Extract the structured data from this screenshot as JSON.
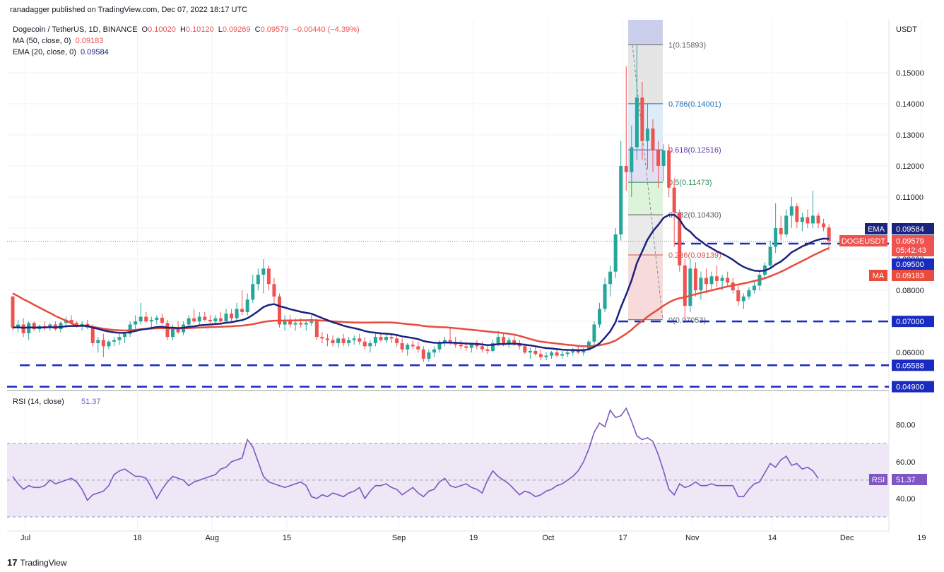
{
  "header": {
    "published": "ranadagger published on TradingView.com, Dec 07, 2022 18:17 UTC",
    "symbol": "Dogecoin / TetherUS, 1D, BINANCE",
    "o_label": "O",
    "o": "0.10020",
    "h_label": "H",
    "h": "0.10120",
    "l_label": "L",
    "l": "0.09269",
    "c_label": "C",
    "c": "0.09579",
    "change": "−0.00440 (−4.39%)",
    "ma_label": "MA (50, close, 0)",
    "ma_value": "0.09183",
    "ema_label": "EMA (20, close, 0)",
    "ema_value": "0.09584"
  },
  "footer": {
    "brand": "TradingView",
    "logo": "17"
  },
  "colors": {
    "up": "#26a69a",
    "down": "#ef5350",
    "ema": "#1a237e",
    "ma": "#e74c3c",
    "support": "#1a2bbf",
    "rsi": "#7e57c2",
    "rsi_band": "#ede7f6"
  },
  "chart_data": [
    {
      "type": "candlestick",
      "title": "Dogecoin / TetherUS, 1D, BINANCE",
      "y_unit": "USDT",
      "ylim": [
        0.048,
        0.167
      ],
      "y_ticks": [
        "0.06000",
        "0.07000",
        "0.08000",
        "0.09000",
        "0.10000",
        "0.11000",
        "0.12000",
        "0.13000",
        "0.14000",
        "0.15000"
      ],
      "x_ticks": [
        "Jul",
        "18",
        "Aug",
        "15",
        "Sep",
        "19",
        "Oct",
        "17",
        "Nov",
        "14",
        "Dec",
        "19"
      ],
      "x_start": "2022-06-27",
      "series": [
        {
          "name": "EMA",
          "color": "#1a237e"
        },
        {
          "name": "MA",
          "color": "#e74c3c"
        }
      ],
      "ohlc": [],
      "levels": [
        {
          "label": "0.07000",
          "value": 0.07
        },
        {
          "label": "0.05588",
          "value": 0.05588
        },
        {
          "label": "0.04900",
          "value": 0.049
        }
      ],
      "fib": [
        {
          "label": "1(0.15893)",
          "value": 0.15893,
          "fill": "#e0e0e0",
          "text_color": "#666666"
        },
        {
          "label": "0.786(0.14001)",
          "value": 0.14001,
          "fill": "#d6e9f8",
          "text_color": "#1f6fb5"
        },
        {
          "label": "0.618(0.12516)",
          "value": 0.12516,
          "fill": "#ddd8f2",
          "text_color": "#5e35b1"
        },
        {
          "label": "0.5(0.11473)",
          "value": 0.11473,
          "fill": "#d7f2d4",
          "text_color": "#2e8b57"
        },
        {
          "label": "0.382(0.10430)",
          "value": 0.1043,
          "fill": "#e6e6e6",
          "text_color": "#555555"
        },
        {
          "label": "0.236(0.09139)",
          "value": 0.09139,
          "fill": "#f6d3d3",
          "text_color": "#d9534f"
        },
        {
          "label": "0(0.07053)",
          "value": 0.07053,
          "fill": null,
          "text_color": "#666666"
        }
      ],
      "labels": {
        "ema": {
          "text": "EMA",
          "value": "0.09584"
        },
        "last": {
          "text": "DOGEUSDT",
          "value": "0.09579",
          "countdown": "05:42:43"
        },
        "level_0950": "0.09500",
        "ma": {
          "text": "MA",
          "value": "0.09183"
        }
      },
      "ohlc_compact": [
        [
          0.078,
          0.0782,
          0.0672,
          0.068
        ],
        [
          0.068,
          0.0705,
          0.0665,
          0.069
        ],
        [
          0.069,
          0.071,
          0.065,
          0.0662
        ],
        [
          0.0662,
          0.07,
          0.064,
          0.0695
        ],
        [
          0.0695,
          0.07,
          0.067,
          0.0675
        ],
        [
          0.0675,
          0.069,
          0.0665,
          0.0685
        ],
        [
          0.0685,
          0.07,
          0.067,
          0.068
        ],
        [
          0.068,
          0.0695,
          0.067,
          0.069
        ],
        [
          0.069,
          0.07,
          0.067,
          0.0675
        ],
        [
          0.0675,
          0.07,
          0.0665,
          0.0695
        ],
        [
          0.0695,
          0.0715,
          0.068,
          0.0705
        ],
        [
          0.0705,
          0.072,
          0.069,
          0.0695
        ],
        [
          0.0695,
          0.07,
          0.068,
          0.0685
        ],
        [
          0.0685,
          0.07,
          0.067,
          0.0692
        ],
        [
          0.0692,
          0.0705,
          0.0675,
          0.068
        ],
        [
          0.068,
          0.069,
          0.062,
          0.063
        ],
        [
          0.063,
          0.065,
          0.06,
          0.064
        ],
        [
          0.064,
          0.066,
          0.0585,
          0.062
        ],
        [
          0.062,
          0.064,
          0.061,
          0.0635
        ],
        [
          0.0635,
          0.065,
          0.062,
          0.064
        ],
        [
          0.064,
          0.066,
          0.0625,
          0.065
        ],
        [
          0.065,
          0.0665,
          0.063,
          0.066
        ],
        [
          0.066,
          0.07,
          0.065,
          0.069
        ],
        [
          0.069,
          0.072,
          0.0675,
          0.07
        ],
        [
          0.07,
          0.076,
          0.069,
          0.0715
        ],
        [
          0.0715,
          0.073,
          0.0695,
          0.07
        ],
        [
          0.07,
          0.0715,
          0.068,
          0.0705
        ],
        [
          0.0705,
          0.072,
          0.069,
          0.0712
        ],
        [
          0.0712,
          0.0725,
          0.069,
          0.0695
        ],
        [
          0.0695,
          0.0705,
          0.064,
          0.065
        ],
        [
          0.065,
          0.069,
          0.064,
          0.068
        ],
        [
          0.068,
          0.07,
          0.066,
          0.0665
        ],
        [
          0.0665,
          0.07,
          0.0655,
          0.069
        ],
        [
          0.069,
          0.072,
          0.068,
          0.071
        ],
        [
          0.071,
          0.074,
          0.0695,
          0.07
        ],
        [
          0.07,
          0.073,
          0.069,
          0.0715
        ],
        [
          0.0715,
          0.073,
          0.07,
          0.0705
        ],
        [
          0.0705,
          0.072,
          0.069,
          0.07
        ],
        [
          0.07,
          0.072,
          0.069,
          0.071
        ],
        [
          0.071,
          0.073,
          0.069,
          0.07
        ],
        [
          0.07,
          0.074,
          0.0695,
          0.0725
        ],
        [
          0.0725,
          0.074,
          0.07,
          0.071
        ],
        [
          0.071,
          0.076,
          0.07,
          0.074
        ],
        [
          0.074,
          0.08,
          0.072,
          0.073
        ],
        [
          0.073,
          0.079,
          0.072,
          0.077
        ],
        [
          0.077,
          0.085,
          0.076,
          0.082
        ],
        [
          0.082,
          0.087,
          0.08,
          0.085
        ],
        [
          0.085,
          0.09,
          0.079,
          0.087
        ],
        [
          0.087,
          0.088,
          0.08,
          0.082
        ],
        [
          0.082,
          0.084,
          0.076,
          0.078
        ],
        [
          0.078,
          0.079,
          0.068,
          0.069
        ],
        [
          0.069,
          0.072,
          0.067,
          0.07
        ],
        [
          0.07,
          0.072,
          0.068,
          0.069
        ],
        [
          0.069,
          0.071,
          0.067,
          0.0695
        ],
        [
          0.0695,
          0.071,
          0.068,
          0.069
        ],
        [
          0.069,
          0.0705,
          0.067,
          0.0695
        ],
        [
          0.0695,
          0.072,
          0.0685,
          0.07
        ],
        [
          0.07,
          0.071,
          0.064,
          0.065
        ],
        [
          0.065,
          0.0665,
          0.063,
          0.0645
        ],
        [
          0.0645,
          0.066,
          0.062,
          0.064
        ],
        [
          0.064,
          0.0655,
          0.062,
          0.063
        ],
        [
          0.063,
          0.065,
          0.0615,
          0.0645
        ],
        [
          0.0645,
          0.066,
          0.062,
          0.063
        ],
        [
          0.063,
          0.065,
          0.062,
          0.064
        ],
        [
          0.064,
          0.0655,
          0.0625,
          0.0645
        ],
        [
          0.0645,
          0.066,
          0.0625,
          0.0635
        ],
        [
          0.0635,
          0.065,
          0.061,
          0.062
        ],
        [
          0.062,
          0.064,
          0.06,
          0.063
        ],
        [
          0.063,
          0.066,
          0.062,
          0.065
        ],
        [
          0.065,
          0.0665,
          0.0635,
          0.064
        ],
        [
          0.064,
          0.066,
          0.063,
          0.065
        ],
        [
          0.065,
          0.066,
          0.063,
          0.0645
        ],
        [
          0.0645,
          0.0655,
          0.062,
          0.063
        ],
        [
          0.063,
          0.0645,
          0.06,
          0.061
        ],
        [
          0.061,
          0.063,
          0.059,
          0.0625
        ],
        [
          0.0625,
          0.064,
          0.061,
          0.062
        ],
        [
          0.062,
          0.0635,
          0.06,
          0.061
        ],
        [
          0.061,
          0.062,
          0.057,
          0.058
        ],
        [
          0.058,
          0.061,
          0.057,
          0.06
        ],
        [
          0.06,
          0.062,
          0.0585,
          0.061
        ],
        [
          0.061,
          0.064,
          0.06,
          0.063
        ],
        [
          0.063,
          0.065,
          0.062,
          0.064
        ],
        [
          0.064,
          0.068,
          0.0625,
          0.063
        ],
        [
          0.063,
          0.065,
          0.0615,
          0.0625
        ],
        [
          0.0625,
          0.064,
          0.061,
          0.062
        ],
        [
          0.062,
          0.0635,
          0.0605,
          0.0615
        ],
        [
          0.0615,
          0.063,
          0.06,
          0.0625
        ],
        [
          0.0625,
          0.064,
          0.061,
          0.062
        ],
        [
          0.062,
          0.0635,
          0.06,
          0.061
        ],
        [
          0.061,
          0.062,
          0.0595,
          0.0605
        ],
        [
          0.0605,
          0.064,
          0.06,
          0.063
        ],
        [
          0.063,
          0.067,
          0.062,
          0.065
        ],
        [
          0.065,
          0.0665,
          0.062,
          0.063
        ],
        [
          0.063,
          0.065,
          0.0615,
          0.064
        ],
        [
          0.064,
          0.0655,
          0.062,
          0.0625
        ],
        [
          0.0625,
          0.064,
          0.061,
          0.062
        ],
        [
          0.062,
          0.063,
          0.0595,
          0.06
        ],
        [
          0.06,
          0.0615,
          0.058,
          0.0605
        ],
        [
          0.0605,
          0.062,
          0.059,
          0.0595
        ],
        [
          0.0595,
          0.061,
          0.0575,
          0.0585
        ],
        [
          0.0585,
          0.06,
          0.0575,
          0.059
        ],
        [
          0.059,
          0.0605,
          0.058,
          0.06
        ],
        [
          0.06,
          0.061,
          0.0585,
          0.059
        ],
        [
          0.059,
          0.0605,
          0.058,
          0.0595
        ],
        [
          0.0595,
          0.061,
          0.0585,
          0.06
        ],
        [
          0.06,
          0.0615,
          0.059,
          0.0605
        ],
        [
          0.0605,
          0.062,
          0.0595,
          0.06
        ],
        [
          0.06,
          0.0615,
          0.059,
          0.061
        ],
        [
          0.061,
          0.064,
          0.0605,
          0.0635
        ],
        [
          0.0635,
          0.07,
          0.062,
          0.069
        ],
        [
          0.069,
          0.076,
          0.068,
          0.074
        ],
        [
          0.074,
          0.084,
          0.073,
          0.082
        ],
        [
          0.082,
          0.088,
          0.078,
          0.086
        ],
        [
          0.086,
          0.1,
          0.084,
          0.098
        ],
        [
          0.098,
          0.128,
          0.096,
          0.12
        ],
        [
          0.12,
          0.152,
          0.112,
          0.118
        ],
        [
          0.118,
          0.133,
          0.11,
          0.126
        ],
        [
          0.126,
          0.159,
          0.122,
          0.142
        ],
        [
          0.142,
          0.147,
          0.122,
          0.128
        ],
        [
          0.128,
          0.14,
          0.119,
          0.132
        ],
        [
          0.132,
          0.135,
          0.118,
          0.125
        ],
        [
          0.125,
          0.128,
          0.113,
          0.12
        ],
        [
          0.12,
          0.127,
          0.115,
          0.125
        ],
        [
          0.125,
          0.127,
          0.11,
          0.113
        ],
        [
          0.113,
          0.116,
          0.094,
          0.105
        ],
        [
          0.105,
          0.106,
          0.086,
          0.088
        ],
        [
          0.088,
          0.09,
          0.0705,
          0.075
        ],
        [
          0.075,
          0.09,
          0.073,
          0.087
        ],
        [
          0.087,
          0.089,
          0.078,
          0.08
        ],
        [
          0.08,
          0.086,
          0.077,
          0.084
        ],
        [
          0.084,
          0.087,
          0.079,
          0.082
        ],
        [
          0.082,
          0.086,
          0.08,
          0.0845
        ],
        [
          0.0845,
          0.088,
          0.081,
          0.083
        ],
        [
          0.083,
          0.085,
          0.08,
          0.084
        ],
        [
          0.084,
          0.086,
          0.081,
          0.0825
        ],
        [
          0.0825,
          0.084,
          0.079,
          0.08
        ],
        [
          0.08,
          0.0815,
          0.075,
          0.0765
        ],
        [
          0.0765,
          0.079,
          0.074,
          0.078
        ],
        [
          0.078,
          0.081,
          0.077,
          0.08
        ],
        [
          0.08,
          0.083,
          0.079,
          0.0815
        ],
        [
          0.0815,
          0.086,
          0.08,
          0.085
        ],
        [
          0.085,
          0.089,
          0.084,
          0.088
        ],
        [
          0.088,
          0.096,
          0.087,
          0.094
        ],
        [
          0.094,
          0.108,
          0.092,
          0.1
        ],
        [
          0.1,
          0.104,
          0.096,
          0.098
        ],
        [
          0.098,
          0.106,
          0.097,
          0.104
        ],
        [
          0.104,
          0.11,
          0.1,
          0.107
        ],
        [
          0.107,
          0.108,
          0.1,
          0.102
        ],
        [
          0.102,
          0.105,
          0.099,
          0.1035
        ],
        [
          0.1035,
          0.106,
          0.1,
          0.1015
        ],
        [
          0.1015,
          0.112,
          0.1,
          0.104
        ],
        [
          0.104,
          0.105,
          0.1,
          0.1015
        ],
        [
          0.1015,
          0.103,
          0.099,
          0.1002
        ],
        [
          0.1002,
          0.1012,
          0.0927,
          0.0958
        ]
      ],
      "rsi": {
        "label": "RSI (14, close)",
        "value": "51.37",
        "ylim": [
          25,
          96
        ],
        "band": [
          30,
          70
        ],
        "y_ticks": [
          "40.00",
          "60.00",
          "80.00"
        ],
        "values": [
          52,
          48,
          45,
          47,
          46,
          46,
          47,
          50,
          48,
          49,
          50,
          51,
          49,
          45,
          39,
          42,
          43,
          44,
          47,
          53,
          55,
          56,
          54,
          52,
          52,
          51,
          46,
          40,
          45,
          49,
          52,
          51,
          50,
          47,
          49,
          50,
          51,
          52,
          53,
          56,
          57,
          60,
          61,
          62,
          72,
          68,
          60,
          52,
          49,
          48,
          47,
          46,
          47,
          48,
          49,
          47,
          41,
          40,
          42,
          41,
          43,
          42,
          41,
          43,
          44,
          46,
          40,
          44,
          47,
          47,
          48,
          46,
          45,
          42,
          44,
          46,
          43,
          41,
          44,
          45,
          49,
          51,
          47,
          46,
          47,
          48,
          46,
          45,
          43,
          50,
          55,
          52,
          50,
          48,
          45,
          42,
          44,
          43,
          41,
          42,
          44,
          45,
          47,
          48,
          50,
          52,
          55,
          60,
          67,
          76,
          81,
          79,
          88,
          84,
          85,
          89,
          82,
          74,
          72,
          73,
          71,
          64,
          55,
          45,
          42,
          48,
          46,
          47,
          49,
          47,
          47,
          48,
          47,
          47,
          47,
          47,
          41,
          41,
          45,
          48,
          49,
          54,
          59,
          57,
          61,
          63,
          58,
          59,
          56,
          57,
          55,
          51
        ]
      }
    }
  ]
}
